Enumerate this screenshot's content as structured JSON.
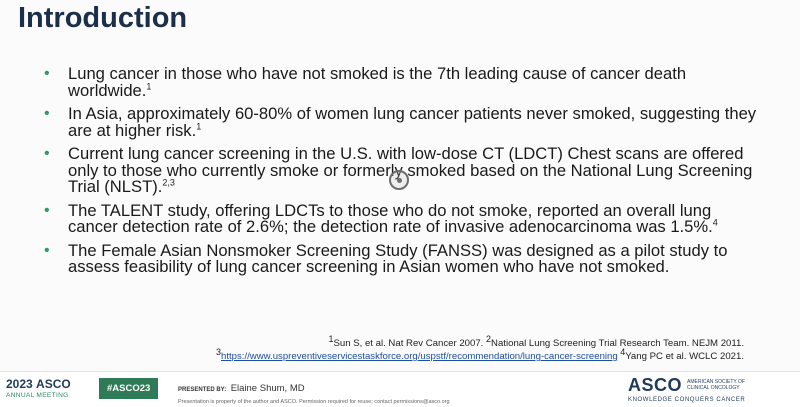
{
  "title": "Introduction",
  "bullets": [
    {
      "text": "Lung cancer in those who have not smoked is the 7th leading cause of cancer death worldwide.",
      "sup": "1"
    },
    {
      "text": "In Asia, approximately 60-80% of women lung cancer patients never smoked, suggesting they are at higher risk.",
      "sup": "1"
    },
    {
      "text": "Current lung cancer screening in the U.S. with low-dose CT (LDCT) Chest scans are offered only to those who currently smoke or formerly smoked based on the National Lung Screening Trial (NLST).",
      "sup": "2,3"
    },
    {
      "text": "The TALENT study, offering LDCTs to those who do not smoke, reported an overall lung cancer detection rate of 2.6%; the detection rate of invasive adenocarcinoma was 1.5%.",
      "sup": "4"
    },
    {
      "text": "The Female Asian Nonsmoker Screening Study (FANSS) was designed as a pilot study to assess feasibility of lung cancer screening in Asian women who have not smoked.",
      "sup": ""
    }
  ],
  "references": {
    "line1_sup1": "1",
    "line1_text1": "Sun S, et al. Nat Rev Cancer 2007. ",
    "line1_sup2": "2",
    "line1_text2": "National Lung Screening Trial Research Team. NEJM 2011.",
    "line2_sup1": "3",
    "line2_link": "https://www.uspreventiveservicestaskforce.org/uspstf/recommendation/lung-cancer-screening",
    "line2_sup2": " 4",
    "line2_text": "Yang PC et al. WCLC 2021."
  },
  "footer": {
    "meeting_year": "2023",
    "meeting_brand": "ASCO",
    "meeting_sub": "ANNUAL MEETING",
    "hashtag": "#ASCO23",
    "presented_by_label": "PRESENTED BY:",
    "presenter_name": "Elaine Shum, MD",
    "permission_note": "Presentation is property of the author and ASCO. Permission required for reuse; contact permissions@asco.org",
    "right_logo": "ASCO",
    "right_society": "AMERICAN SOCIETY OF CLINICAL ONCOLOGY",
    "right_slogan": "KNOWLEDGE CONQUERS CANCER"
  },
  "colors": {
    "title": "#1b2f4a",
    "bullet_dot": "#2f9a63",
    "hashtag_bg": "#2f7a57",
    "brand_navy": "#1f3a5c"
  },
  "icons": {
    "bullet": "bullet-dot-icon",
    "cursor": "pointer-cursor-icon"
  }
}
